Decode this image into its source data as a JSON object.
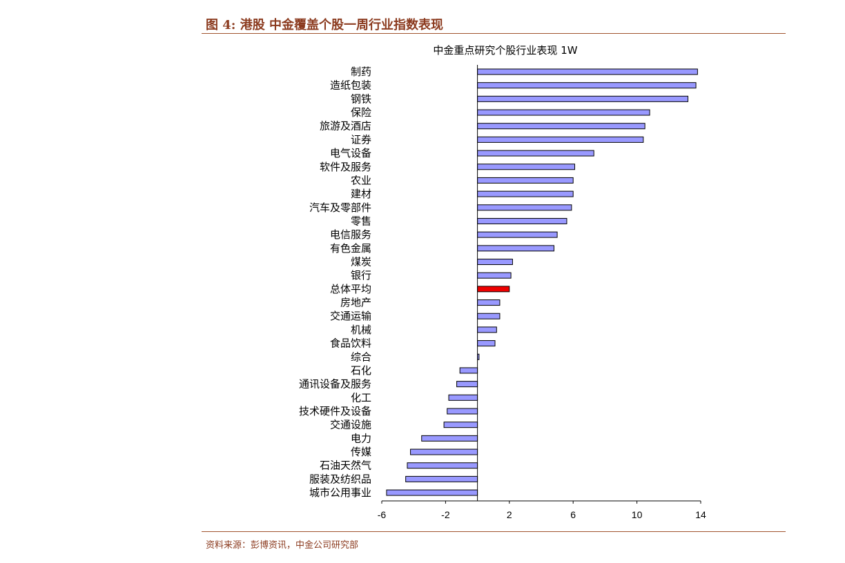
{
  "figure_title": "图 4:  港股  中金覆盖个股一周行业指数表现",
  "source_note": "资料来源：彭博资讯，中金公司研究部",
  "colors": {
    "bar": "#9999ff",
    "highlight_bar": "#ee0000",
    "bar_stroke": "#000000",
    "accent": "#8b3a1e"
  },
  "chart_data": {
    "type": "bar",
    "orientation": "horizontal",
    "title": "中金重点研究个股行业表现 1W",
    "xlabel": "",
    "ylabel": "",
    "xlim": [
      -6,
      14
    ],
    "xticks": [
      -6,
      -2,
      2,
      6,
      10,
      14
    ],
    "grid": false,
    "legend": "none",
    "highlight_category": "总体平均",
    "categories": [
      "制药",
      "造纸包装",
      "钢铁",
      "保险",
      "旅游及酒店",
      "证券",
      "电气设备",
      "软件及服务",
      "农业",
      "建材",
      "汽车及零部件",
      "零售",
      "电信服务",
      "有色金属",
      "煤炭",
      "银行",
      "总体平均",
      "房地产",
      "交通运输",
      "机械",
      "食品饮料",
      "综合",
      "石化",
      "通讯设备及服务",
      "化工",
      "技术硬件及设备",
      "交通设施",
      "电力",
      "传媒",
      "石油天然气",
      "服装及纺织品",
      "城市公用事业"
    ],
    "values": [
      13.8,
      13.7,
      13.2,
      10.8,
      10.5,
      10.4,
      7.3,
      6.1,
      6.0,
      6.0,
      5.9,
      5.6,
      5.0,
      4.8,
      2.2,
      2.1,
      2.0,
      1.4,
      1.4,
      1.2,
      1.1,
      0.1,
      -1.1,
      -1.3,
      -1.8,
      -1.9,
      -2.1,
      -3.5,
      -4.2,
      -4.4,
      -4.5,
      -5.7
    ]
  }
}
